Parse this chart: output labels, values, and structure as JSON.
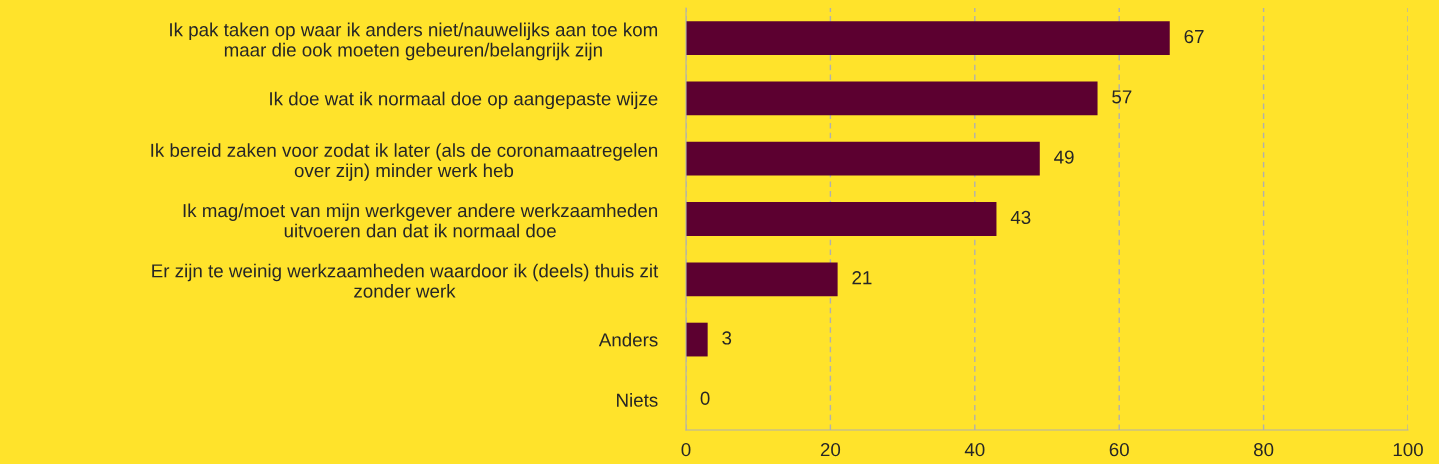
{
  "chart_data": {
    "type": "bar",
    "orientation": "horizontal",
    "categories": [
      "Ik pak taken op waar ik anders niet/nauwelijks aan toe kom\nmaar die ook moeten gebeuren/belangrijk zijn",
      "Ik doe wat ik normaal doe op aangepaste wijze",
      "Ik bereid zaken voor zodat ik later (als de coronamaatregelen\nover zijn) minder werk heb",
      "Ik mag/moet van mijn werkgever andere werkzaamheden\nuitvoeren dan dat ik normaal doe",
      "Er zijn te weinig werkzaamheden waardoor ik (deels) thuis zit\nzonder werk",
      "Anders",
      "Niets"
    ],
    "values": [
      67,
      57,
      49,
      43,
      21,
      3,
      0
    ],
    "color": "#5c0030",
    "xlim": [
      0,
      100
    ],
    "xticks": [
      0,
      20,
      40,
      60,
      80,
      100
    ],
    "grid": "x",
    "data_labels": true
  }
}
